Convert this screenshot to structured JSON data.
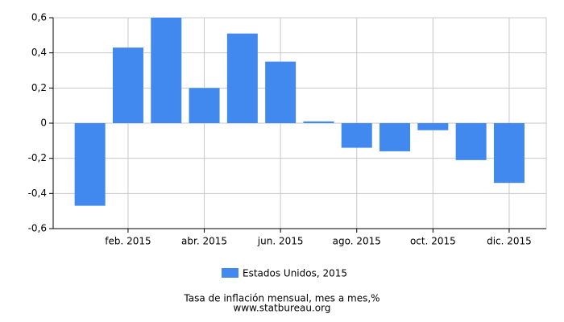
{
  "chart_data": {
    "type": "bar",
    "title": "Tasa de inflación mensual, mes a mes,%",
    "source": "www.statbureau.org",
    "categories": [
      null,
      "feb. 2015",
      null,
      "abr. 2015",
      null,
      "jun. 2015",
      null,
      "ago. 2015",
      null,
      "oct. 2015",
      null,
      "dic. 2015"
    ],
    "series": [
      {
        "name": "Estados Unidos, 2015",
        "color": "#4189ef",
        "values": [
          -0.47,
          0.43,
          0.6,
          0.2,
          0.51,
          0.35,
          0.01,
          -0.14,
          -0.16,
          -0.04,
          -0.21,
          -0.34
        ]
      }
    ],
    "ylim": [
      -0.6,
      0.6
    ],
    "yticks": [
      {
        "value": -0.6,
        "label": "-0,6"
      },
      {
        "value": -0.4,
        "label": "-0,4"
      },
      {
        "value": -0.2,
        "label": "-0,2"
      },
      0,
      {
        "value": 0.2,
        "label": "0,2"
      },
      {
        "value": 0.4,
        "label": "0,4"
      },
      {
        "value": 0.6,
        "label": "0,6"
      }
    ],
    "grid": true
  }
}
